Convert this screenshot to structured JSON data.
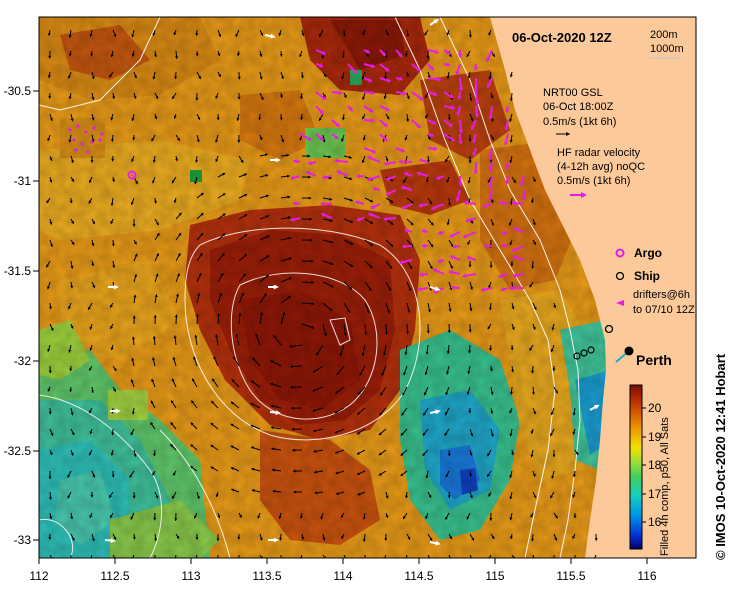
{
  "map": {
    "date_title": "06-Oct-2020 12Z",
    "isobath_200": "200m",
    "isobath_1000": "1000m",
    "gsl_line1": "NRT00 GSL",
    "gsl_line2": "06-Oct 18:00Z",
    "gsl_line3": "0.5m/s (1kt 6h)",
    "hf_line1": "HF radar velocity",
    "hf_line2": "(4-12h avg) noQC",
    "hf_line3": "0.5m/s (1kt 6h)",
    "argo_label": "Argo",
    "ship_label": "Ship",
    "drifter_line1": "drifters@6h",
    "drifter_line2": "to 07/10 12Z",
    "city_label": "Perth",
    "colorbar_title": "Filled 4h comp, p50, All Sats",
    "colorbar_ticks": [
      "16",
      "17",
      "18",
      "19",
      "20"
    ],
    "credit": "© IMOS 10-Oct-2020 12:41 Hobart",
    "lon_ticks": [
      "112",
      "112.5",
      "113",
      "113.5",
      "114",
      "114.5",
      "115",
      "115.5",
      "116"
    ],
    "lat_ticks": [
      "-30.5",
      "-31",
      "-31.5",
      "-32",
      "-32.5",
      "-33"
    ],
    "colors": {
      "land": "#fcc99a",
      "vector": "#000000",
      "hf_vector": "#e81ce8",
      "drifter": "#ffffff",
      "contour": "#ffffff"
    }
  }
}
